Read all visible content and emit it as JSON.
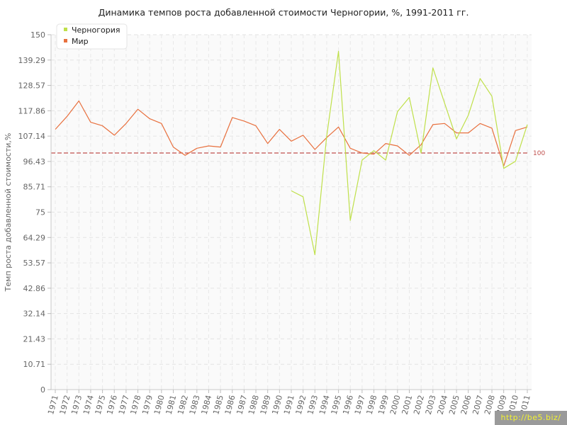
{
  "chart_data": {
    "type": "line",
    "title": "Динамика темпов роста добавленной стоимости Черногории, %, 1991-2011 гг.",
    "xlabel": "",
    "ylabel": "Темп роста добавленной стоимости,%",
    "ylim": [
      0,
      150
    ],
    "y_ticks": [
      "0",
      "10.71",
      "21.43",
      "32.14",
      "42.86",
      "53.57",
      "64.29",
      "75",
      "85.71",
      "96.43",
      "107.14",
      "117.86",
      "128.57",
      "139.29",
      "150"
    ],
    "categories": [
      "1971",
      "1972",
      "1973",
      "1974",
      "1975",
      "1976",
      "1977",
      "1978",
      "1979",
      "1980",
      "1981",
      "1982",
      "1983",
      "1984",
      "1985",
      "1986",
      "1987",
      "1988",
      "1989",
      "1990",
      "1991",
      "1992",
      "1993",
      "1994",
      "1995",
      "1996",
      "1997",
      "1998",
      "1999",
      "2000",
      "2001",
      "2002",
      "2003",
      "2004",
      "2005",
      "2006",
      "2007",
      "2008",
      "2009",
      "2010",
      "2011"
    ],
    "grid": true,
    "legend_position": "top-left",
    "reference_line": {
      "value": 100,
      "label": "100",
      "color": "#c0504d"
    },
    "series": [
      {
        "name": "Черногория",
        "color": "#bfe04a",
        "values": [
          null,
          null,
          null,
          null,
          null,
          null,
          null,
          null,
          null,
          null,
          null,
          null,
          null,
          null,
          null,
          null,
          null,
          null,
          null,
          null,
          84.0,
          81.5,
          57.0,
          107.0,
          143.0,
          71.5,
          97.0,
          101.0,
          97.0,
          117.5,
          123.5,
          100.0,
          136.0,
          121.0,
          106.0,
          116.0,
          131.5,
          124.0,
          93.5,
          96.5,
          112.0
        ]
      },
      {
        "name": "Мир",
        "color": "#e8703e",
        "values": [
          110.0,
          115.5,
          122.0,
          113.0,
          111.5,
          107.5,
          112.5,
          118.5,
          114.5,
          112.5,
          102.5,
          99.0,
          102.0,
          103.0,
          102.5,
          115.0,
          113.5,
          111.5,
          104.0,
          110.0,
          105.0,
          107.5,
          101.5,
          106.5,
          111.0,
          102.0,
          100.0,
          99.5,
          104.0,
          103.0,
          99.0,
          103.5,
          112.0,
          112.5,
          108.5,
          108.5,
          112.5,
          110.5,
          94.5,
          109.5,
          111.0
        ]
      }
    ]
  },
  "watermark": "http://be5.biz/"
}
